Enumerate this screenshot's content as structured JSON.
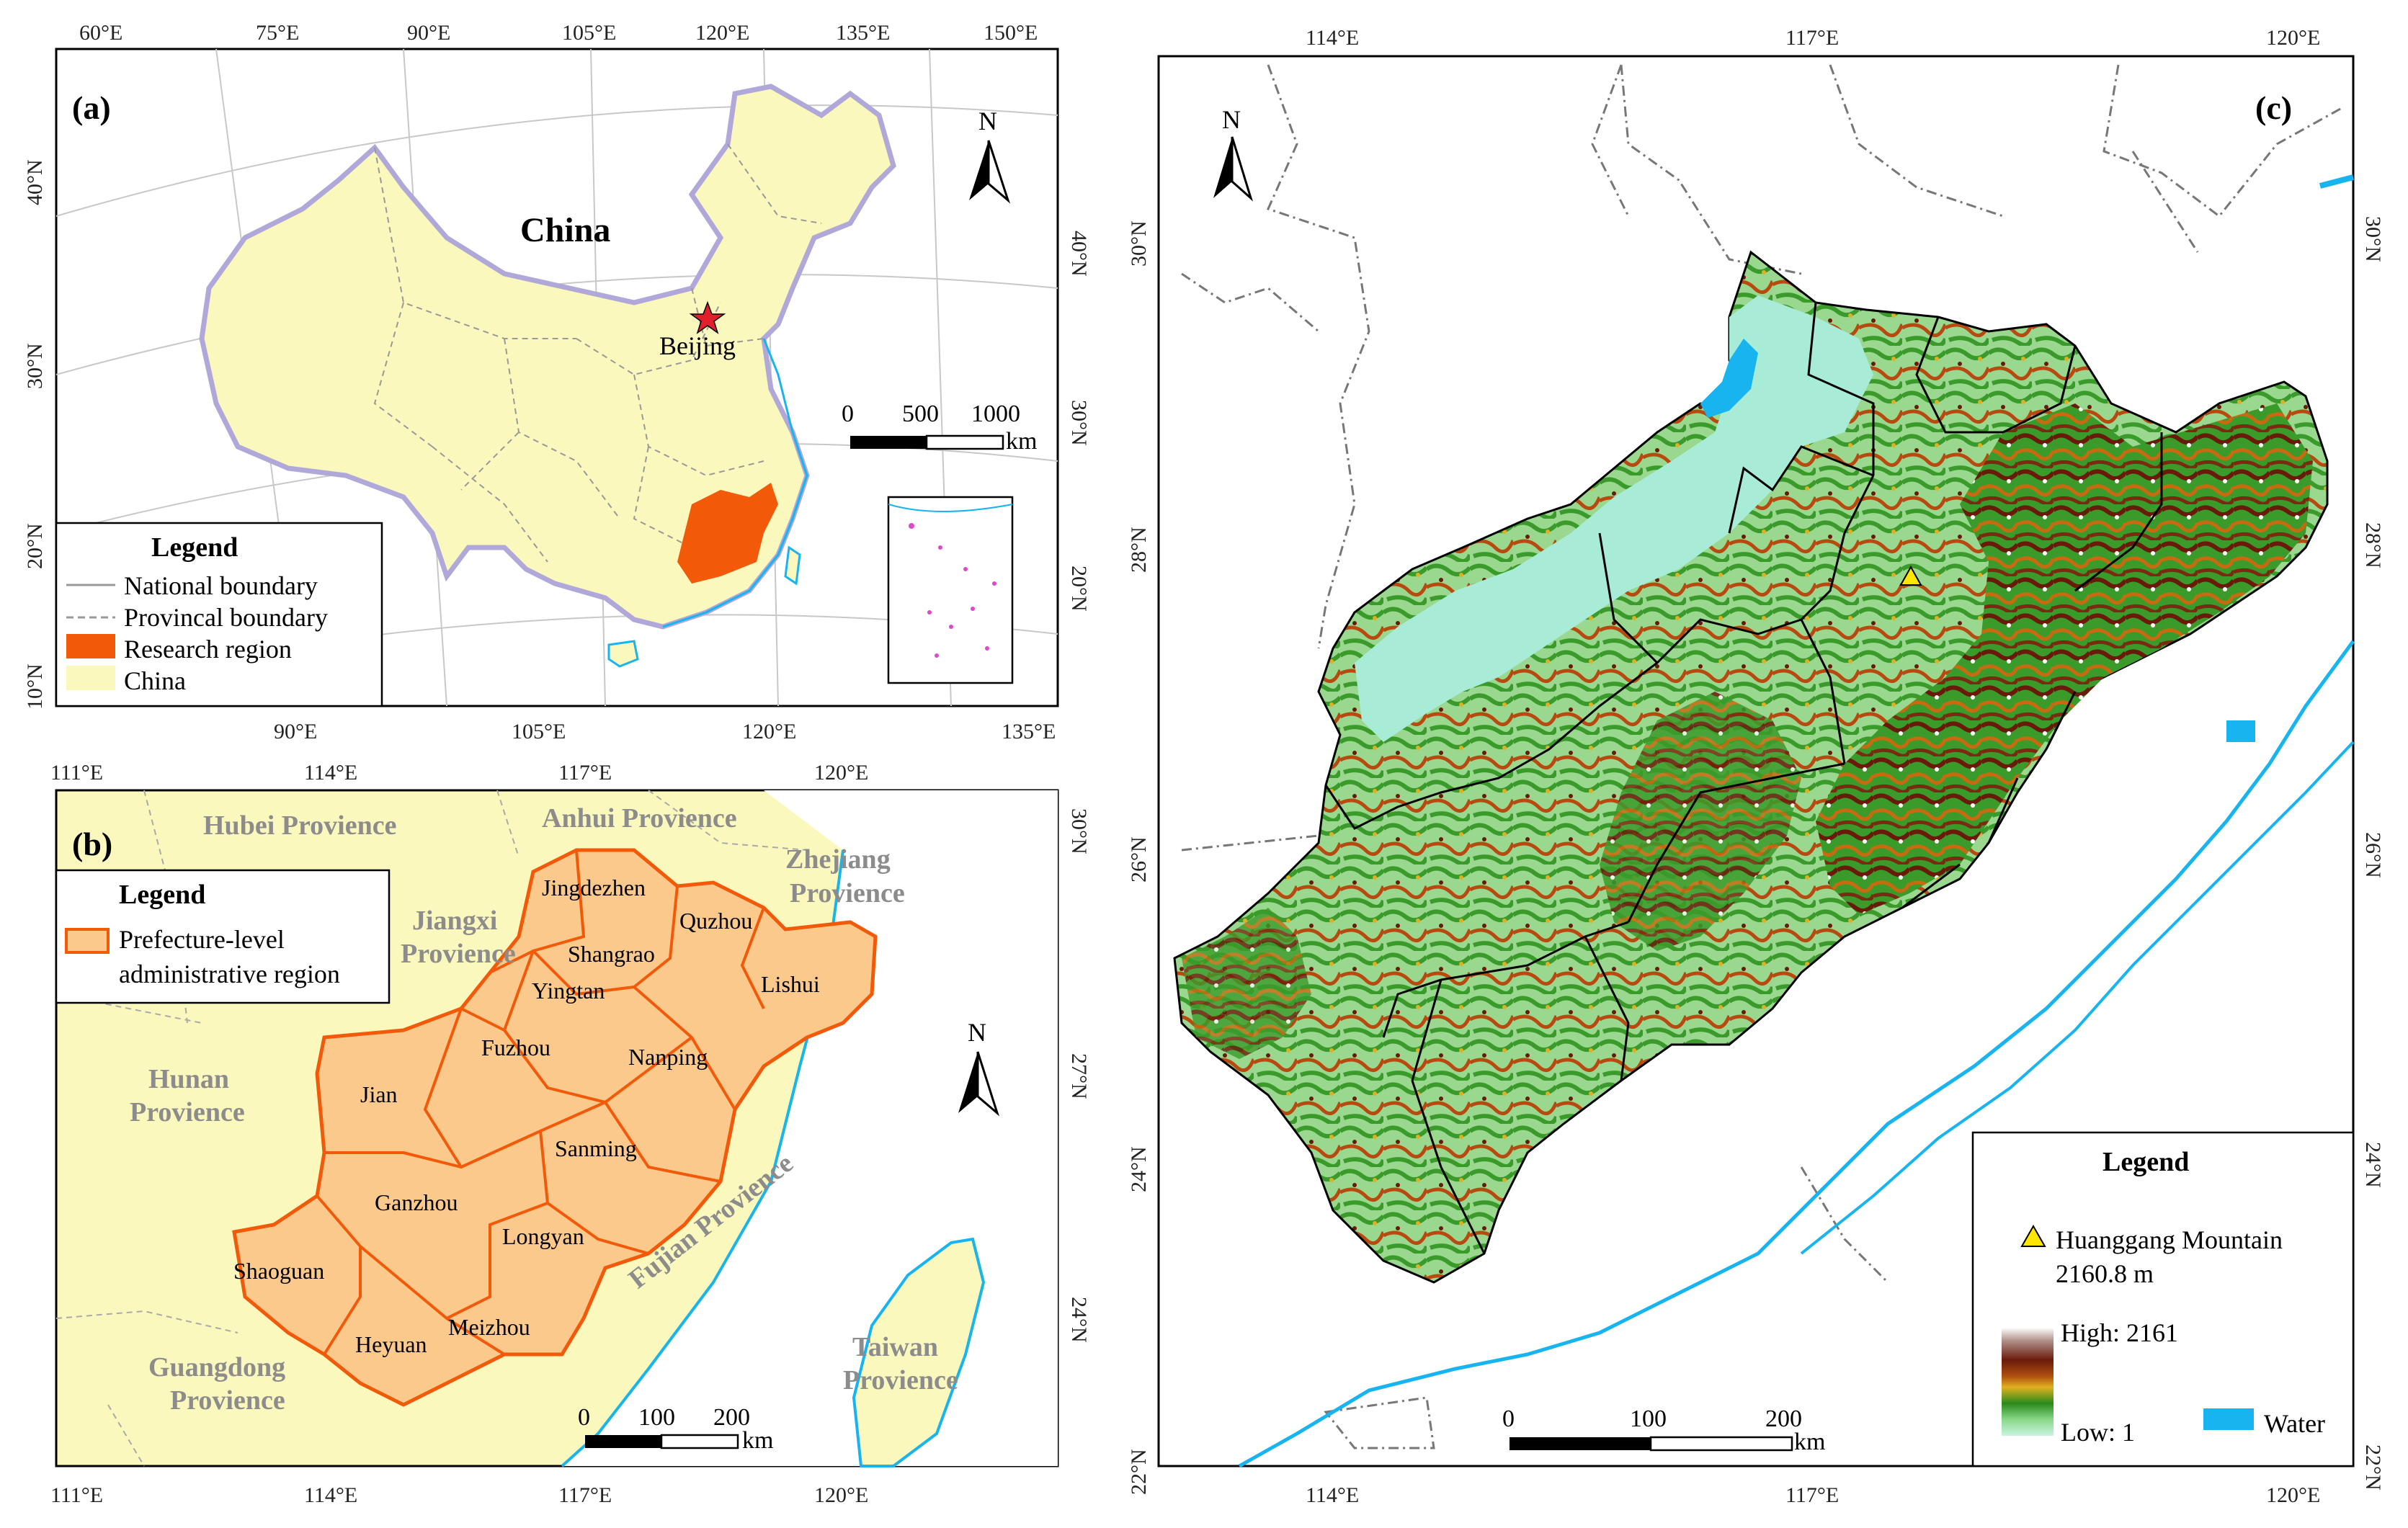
{
  "panel_a": {
    "label": "(a)",
    "country_label": "China",
    "capital_label": "Beijing",
    "top_lon_ticks": [
      "60°E",
      "75°E",
      "90°E",
      "105°E",
      "120°E",
      "135°E",
      "150°E"
    ],
    "bottom_lon_ticks": [
      "90°E",
      "105°E",
      "120°E",
      "135°E"
    ],
    "left_lat_ticks": [
      "40°N",
      "30°N",
      "20°N",
      "10°N"
    ],
    "right_lat_ticks": [
      "40°N",
      "30°N",
      "20°N"
    ],
    "north_label": "N",
    "scale": {
      "labels": [
        "0",
        "500",
        "1000"
      ],
      "unit": "km"
    },
    "legend": {
      "title": "Legend",
      "items": [
        {
          "label": "National boundary",
          "symbol": "solid-line",
          "color": "#999999"
        },
        {
          "label": "Provincal boundary",
          "symbol": "dashed-line",
          "color": "#999999"
        },
        {
          "label": "Research region",
          "symbol": "fill",
          "color": "#f25a0a"
        },
        {
          "label": "China",
          "symbol": "fill",
          "color": "#fbf8bd"
        }
      ]
    }
  },
  "panel_b": {
    "label": "(b)",
    "top_lon_ticks": [
      "111°E",
      "114°E",
      "117°E",
      "120°E"
    ],
    "bottom_lon_ticks": [
      "111°E",
      "114°E",
      "117°E",
      "120°E"
    ],
    "right_lat_ticks": [
      "30°N",
      "27°N",
      "24°N"
    ],
    "north_label": "N",
    "scale": {
      "labels": [
        "0",
        "100",
        "200"
      ],
      "unit": "km"
    },
    "province_labels": [
      {
        "name": "Hubei",
        "text": "Hubei Provience"
      },
      {
        "name": "Anhui",
        "text": "Anhui Provience"
      },
      {
        "name": "Zhejiang",
        "text": "Zhejiang Provience"
      },
      {
        "name": "Jiangxi",
        "text": "Jiangxi Provience"
      },
      {
        "name": "Hunan",
        "text": "Hunan Provience"
      },
      {
        "name": "Fujian",
        "text": "Fujian Provience"
      },
      {
        "name": "Guangdong",
        "text": "Guangdong Provience"
      },
      {
        "name": "Taiwan",
        "text": "Taiwan Provience"
      }
    ],
    "city_labels": [
      "Jingdezhen",
      "Quzhou",
      "Shangrao",
      "Yingtan",
      "Lishui",
      "Fuzhou",
      "Nanping",
      "Jian",
      "Sanming",
      "Ganzhou",
      "Longyan",
      "Shaoguan",
      "Heyuan",
      "Meizhou"
    ],
    "legend": {
      "title": "Legend",
      "item_label": "Prefecture-level administrative region",
      "fill_color": "#fbc98c",
      "stroke_color": "#f25a0a"
    }
  },
  "panel_c": {
    "label": "(c)",
    "top_lon_ticks": [
      "114°E",
      "117°E",
      "120°E"
    ],
    "bottom_lon_ticks": [
      "114°E",
      "117°E",
      "120°E"
    ],
    "left_lat_ticks": [
      "30°N",
      "28°N",
      "26°N",
      "24°N",
      "22°N"
    ],
    "right_lat_ticks": [
      "30°N",
      "28°N",
      "26°N",
      "24°N",
      "22°N"
    ],
    "north_label": "N",
    "scale": {
      "labels": [
        "0",
        "100",
        "200"
      ],
      "unit": "km"
    },
    "legend": {
      "title": "Legend",
      "peak_label": "Huanggang Mountain",
      "peak_elevation": "2160.8 m",
      "high_label": "High: 2161",
      "low_label": "Low: 1",
      "water_label": "Water",
      "water_color": "#18b4f0"
    }
  },
  "colors": {
    "china_fill": "#fbf8bd",
    "research_fill": "#f25a0a",
    "prefecture_fill": "#fbc98c",
    "province_text": "#8c8c8c",
    "water": "#18b4f0",
    "dem_low": "#a8ecd8",
    "dem_mid": "#3a9a2a",
    "dem_high": "#7a2a10"
  }
}
